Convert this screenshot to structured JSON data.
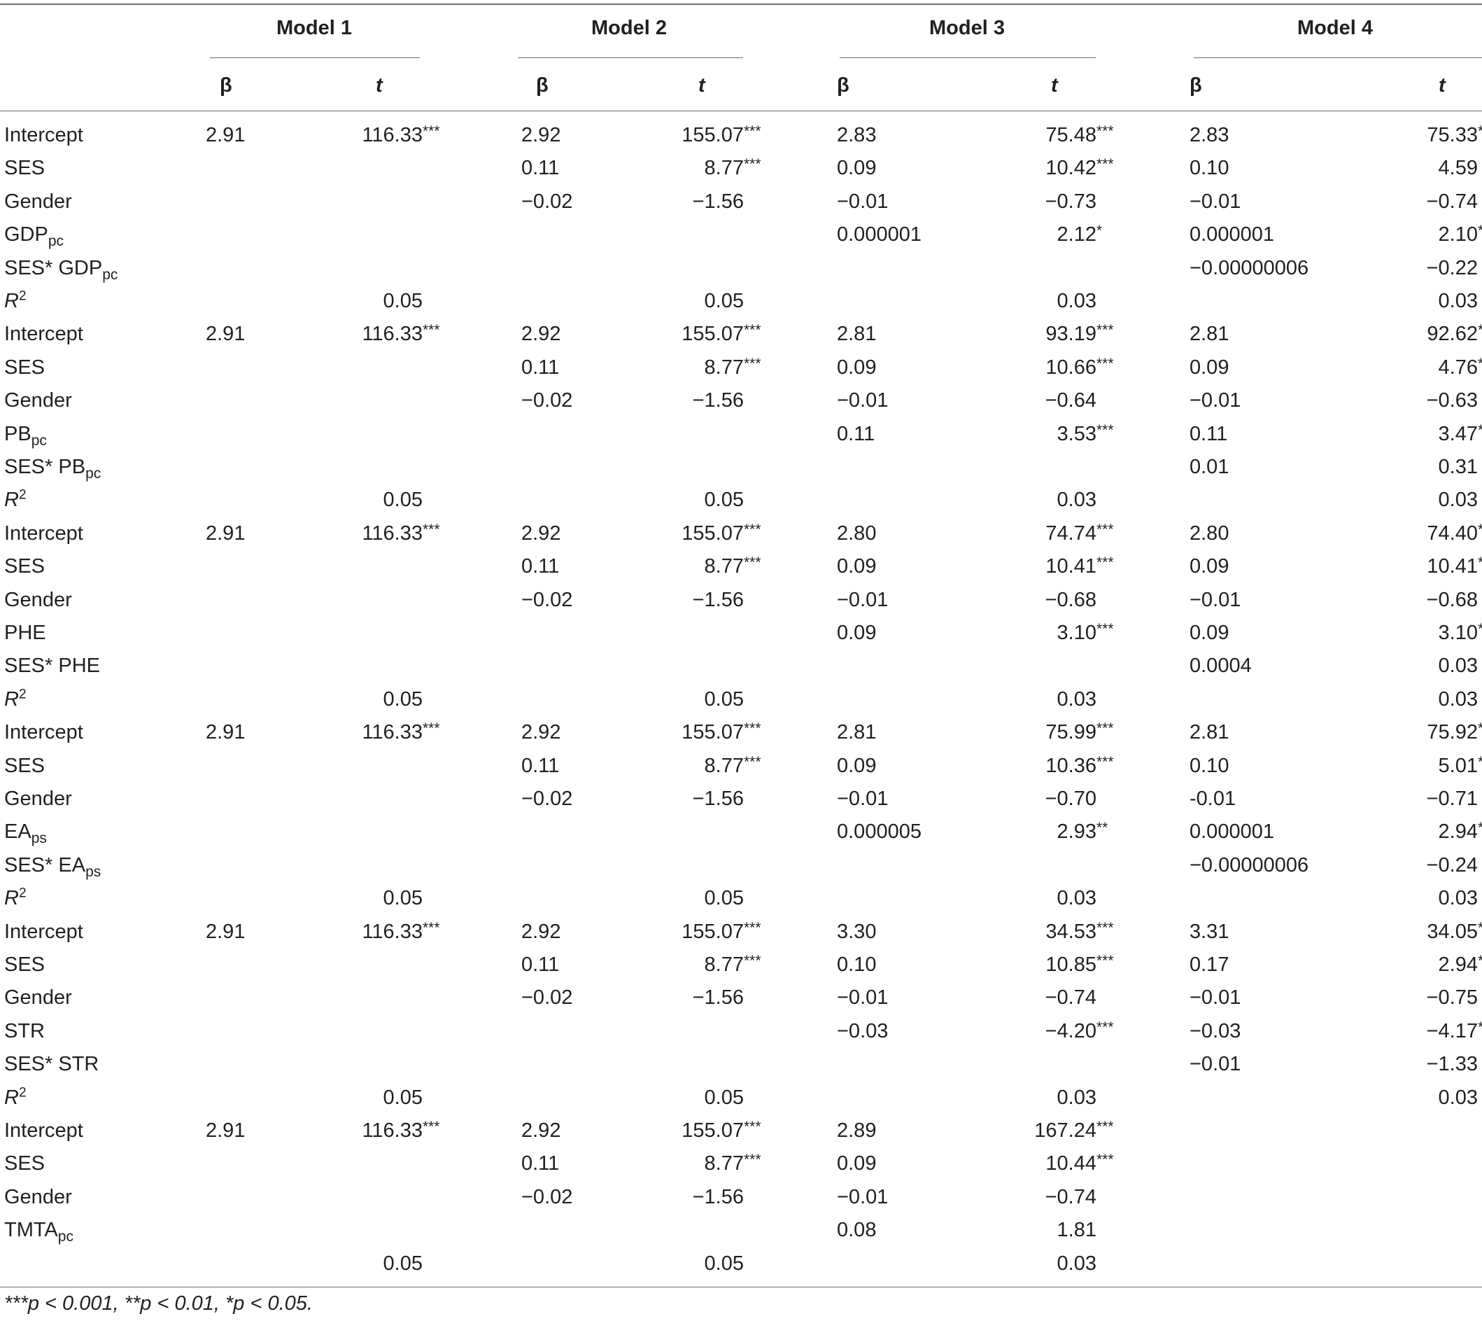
{
  "header": {
    "models": [
      "Model 1",
      "Model 2",
      "Model 3",
      "Model 4"
    ],
    "beta": "β",
    "t": "t"
  },
  "rows": [
    {
      "label": "Intercept",
      "sub": "",
      "c": [
        "2.91",
        "116.33",
        "***",
        "2.92",
        "155.07",
        "***",
        "2.83",
        "75.48",
        "***",
        "2.83",
        "75.33",
        "***"
      ]
    },
    {
      "label": "SES",
      "sub": "",
      "c": [
        "",
        "",
        "",
        "0.11",
        "8.77",
        "***",
        "0.09",
        "10.42",
        "***",
        "0.10",
        "4.59",
        ""
      ]
    },
    {
      "label": "Gender",
      "sub": "",
      "c": [
        "",
        "",
        "",
        "−0.02",
        "−1.56",
        "",
        "−0.01",
        "−0.73",
        "",
        "−0.01",
        "−0.74",
        ""
      ]
    },
    {
      "label": "GDP",
      "sub": "pc",
      "c": [
        "",
        "",
        "",
        "",
        "",
        "",
        "0.000001",
        "2.12",
        "*",
        "0.000001",
        "2.10",
        "*"
      ]
    },
    {
      "label": "SES* GDP",
      "sub": "pc",
      "c": [
        "",
        "",
        "",
        "",
        "",
        "",
        "",
        "",
        "",
        "−0.00000006",
        "−0.22",
        ""
      ]
    },
    {
      "label": "R",
      "sup": "2",
      "italic": true,
      "c": [
        "",
        "0.05",
        "",
        "",
        "0.05",
        "",
        "",
        "0.03",
        "",
        "",
        "0.03",
        ""
      ]
    },
    {
      "label": "Intercept",
      "sub": "",
      "c": [
        "2.91",
        "116.33",
        "***",
        "2.92",
        "155.07",
        "***",
        "2.81",
        "93.19",
        "***",
        "2.81",
        "92.62",
        "***"
      ]
    },
    {
      "label": "SES",
      "sub": "",
      "c": [
        "",
        "",
        "",
        "0.11",
        "8.77",
        "***",
        "0.09",
        "10.66",
        "***",
        "0.09",
        "4.76",
        "***"
      ]
    },
    {
      "label": "Gender",
      "sub": "",
      "c": [
        "",
        "",
        "",
        "−0.02",
        "−1.56",
        "",
        "−0.01",
        "−0.64",
        "",
        "−0.01",
        "−0.63",
        ""
      ]
    },
    {
      "label": "PB",
      "sub": "pc",
      "c": [
        "",
        "",
        "",
        "",
        "",
        "",
        "0.11",
        "3.53",
        "***",
        "0.11",
        "3.47",
        "***"
      ]
    },
    {
      "label": "SES* PB",
      "sub": "pc",
      "c": [
        "",
        "",
        "",
        "",
        "",
        "",
        "",
        "",
        "",
        "0.01",
        "0.31",
        ""
      ]
    },
    {
      "label": "R",
      "sup": "2",
      "italic": true,
      "c": [
        "",
        "0.05",
        "",
        "",
        "0.05",
        "",
        "",
        "0.03",
        "",
        "",
        "0.03",
        ""
      ]
    },
    {
      "label": "Intercept",
      "sub": "",
      "c": [
        "2.91",
        "116.33",
        "***",
        "2.92",
        "155.07",
        "***",
        "2.80",
        "74.74",
        "***",
        "2.80",
        "74.40",
        "***"
      ]
    },
    {
      "label": "SES",
      "sub": "",
      "c": [
        "",
        "",
        "",
        "0.11",
        "8.77",
        "***",
        "0.09",
        "10.41",
        "***",
        "0.09",
        "10.41",
        "***"
      ]
    },
    {
      "label": "Gender",
      "sub": "",
      "c": [
        "",
        "",
        "",
        "−0.02",
        "−1.56",
        "",
        "−0.01",
        "−0.68",
        "",
        "−0.01",
        "−0.68",
        ""
      ]
    },
    {
      "label": "PHE",
      "sub": "",
      "c": [
        "",
        "",
        "",
        "",
        "",
        "",
        "0.09",
        "3.10",
        "***",
        "0.09",
        "3.10",
        "***"
      ]
    },
    {
      "label": "SES* PHE",
      "sub": "",
      "c": [
        "",
        "",
        "",
        "",
        "",
        "",
        "",
        "",
        "",
        "0.0004",
        "0.03",
        ""
      ]
    },
    {
      "label": "R",
      "sup": "2",
      "italic": true,
      "c": [
        "",
        "0.05",
        "",
        "",
        "0.05",
        "",
        "",
        "0.03",
        "",
        "",
        "0.03",
        ""
      ]
    },
    {
      "label": "Intercept",
      "sub": "",
      "c": [
        "2.91",
        "116.33",
        "***",
        "2.92",
        "155.07",
        "***",
        "2.81",
        "75.99",
        "***",
        "2.81",
        "75.92",
        "***"
      ]
    },
    {
      "label": "SES",
      "sub": "",
      "c": [
        "",
        "",
        "",
        "0.11",
        "8.77",
        "***",
        "0.09",
        "10.36",
        "***",
        "0.10",
        "5.01",
        "***"
      ]
    },
    {
      "label": "Gender",
      "sub": "",
      "c": [
        "",
        "",
        "",
        "−0.02",
        "−1.56",
        "",
        "−0.01",
        "−0.70",
        "",
        "-0.01",
        "−0.71",
        ""
      ]
    },
    {
      "label": "EA",
      "sub": "ps",
      "c": [
        "",
        "",
        "",
        "",
        "",
        "",
        "0.000005",
        "2.93",
        "**",
        "0.000001",
        "2.94",
        "**"
      ]
    },
    {
      "label": "SES* EA",
      "sub": "ps",
      "c": [
        "",
        "",
        "",
        "",
        "",
        "",
        "",
        "",
        "",
        "−0.00000006",
        "−0.24",
        ""
      ]
    },
    {
      "label": "R",
      "sup": "2",
      "italic": true,
      "c": [
        "",
        "0.05",
        "",
        "",
        "0.05",
        "",
        "",
        "0.03",
        "",
        "",
        "0.03",
        ""
      ]
    },
    {
      "label": "Intercept",
      "sub": "",
      "c": [
        "2.91",
        "116.33",
        "***",
        "2.92",
        "155.07",
        "***",
        "3.30",
        "34.53",
        "***",
        "3.31",
        "34.05",
        "***"
      ]
    },
    {
      "label": "SES",
      "sub": "",
      "c": [
        "",
        "",
        "",
        "0.11",
        "8.77",
        "***",
        "0.10",
        "10.85",
        "***",
        "0.17",
        "2.94",
        "**"
      ]
    },
    {
      "label": "Gender",
      "sub": "",
      "c": [
        "",
        "",
        "",
        "−0.02",
        "−1.56",
        "",
        "−0.01",
        "−0.74",
        "",
        "−0.01",
        "−0.75",
        ""
      ]
    },
    {
      "label": "STR",
      "sub": "",
      "c": [
        "",
        "",
        "",
        "",
        "",
        "",
        "−0.03",
        "−4.20",
        "***",
        "−0.03",
        "−4.17",
        "***"
      ]
    },
    {
      "label": "SES* STR",
      "sub": "",
      "c": [
        "",
        "",
        "",
        "",
        "",
        "",
        "",
        "",
        "",
        "−0.01",
        "−1.33",
        ""
      ]
    },
    {
      "label": "R",
      "sup": "2",
      "italic": true,
      "c": [
        "",
        "0.05",
        "",
        "",
        "0.05",
        "",
        "",
        "0.03",
        "",
        "",
        "0.03",
        ""
      ]
    },
    {
      "label": "Intercept",
      "sub": "",
      "c": [
        "2.91",
        "116.33",
        "***",
        "2.92",
        "155.07",
        "***",
        "2.89",
        "167.24",
        "***",
        "",
        "",
        ""
      ]
    },
    {
      "label": "SES",
      "sub": "",
      "c": [
        "",
        "",
        "",
        "0.11",
        "8.77",
        "***",
        "0.09",
        "10.44",
        "***",
        "",
        "",
        ""
      ]
    },
    {
      "label": "Gender",
      "sub": "",
      "c": [
        "",
        "",
        "",
        "−0.02",
        "−1.56",
        "",
        "−0.01",
        "−0.74",
        "",
        "",
        "",
        ""
      ]
    },
    {
      "label": "TMTA",
      "sub": "pc",
      "c": [
        "",
        "",
        "",
        "",
        "",
        "",
        "0.08",
        "1.81",
        "",
        "",
        "",
        ""
      ]
    },
    {
      "label": "",
      "sub": "",
      "c": [
        "",
        "0.05",
        "",
        "",
        "0.05",
        "",
        "",
        "0.03",
        "",
        "",
        "",
        ""
      ]
    }
  ],
  "footnote": "***p < 0.001, **p < 0.01, *p < 0.05."
}
